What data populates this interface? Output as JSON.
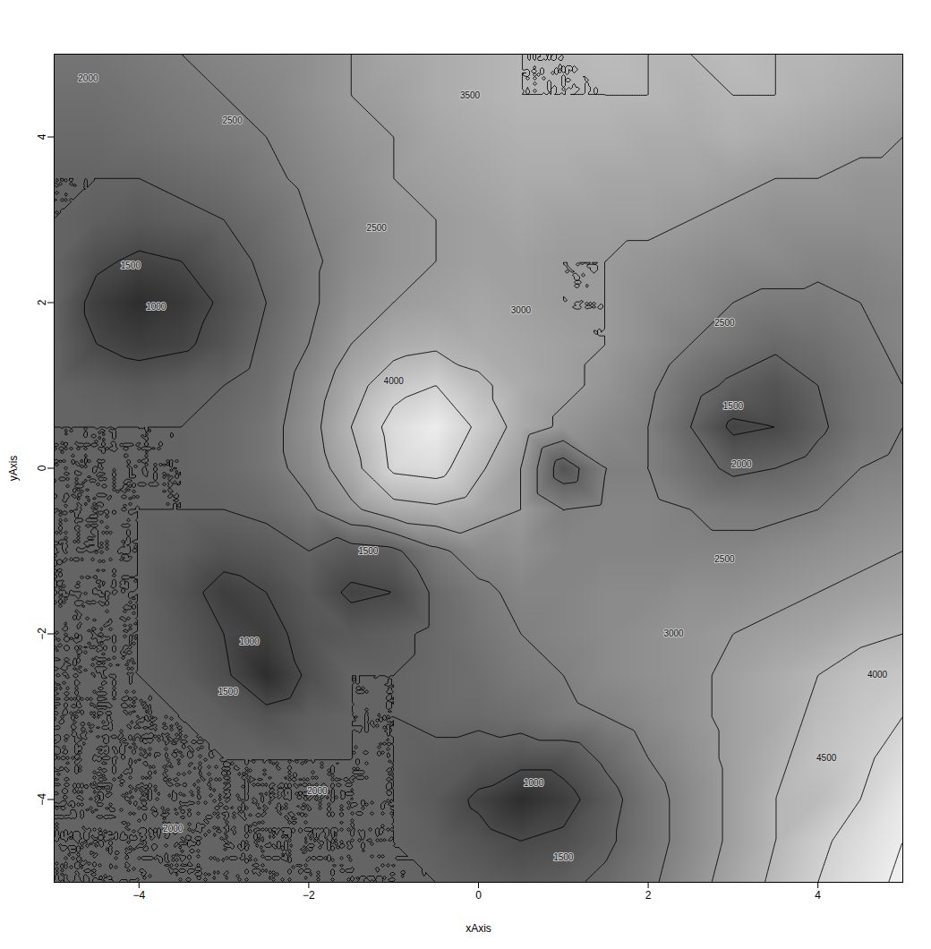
{
  "chart_data": {
    "type": "contour",
    "xlabel": "xAxis",
    "ylabel": "yAxis",
    "xlim": [
      -5,
      5
    ],
    "ylim": [
      -5,
      5
    ],
    "xticks": [
      -4,
      -2,
      0,
      2,
      4
    ],
    "yticks": [
      -4,
      -2,
      0,
      2,
      4
    ],
    "x": [
      -5,
      -4.5,
      -4,
      -3.5,
      -3,
      -2.5,
      -2,
      -1.5,
      -1,
      -0.5,
      0,
      0.5,
      1,
      1.5,
      2,
      2.5,
      3,
      3.5,
      4,
      4.5,
      5
    ],
    "y": [
      5,
      4.5,
      4,
      3.5,
      3,
      2.5,
      2,
      1.5,
      1,
      0.5,
      0,
      -0.5,
      -1,
      -1.5,
      -2,
      -2.5,
      -3,
      -3.5,
      -4,
      -4.5,
      -5
    ],
    "values": [
      [
        2300,
        2300,
        2400,
        2500,
        2600,
        2700,
        2800,
        3000,
        3200,
        3300,
        3400,
        3500,
        3500,
        3600,
        3500,
        3500,
        3600,
        3500,
        3500,
        3400,
        3300
      ],
      [
        2200,
        2200,
        2300,
        2400,
        2500,
        2600,
        2800,
        3000,
        3100,
        3300,
        3400,
        3500,
        3500,
        3500,
        3500,
        3400,
        3500,
        3500,
        3400,
        3300,
        3200
      ],
      [
        2100,
        2100,
        2200,
        2300,
        2400,
        2500,
        2700,
        2900,
        3000,
        3200,
        3300,
        3400,
        3400,
        3400,
        3300,
        3300,
        3400,
        3300,
        3200,
        3100,
        3000
      ],
      [
        2000,
        2000,
        2000,
        2100,
        2200,
        2400,
        2600,
        2800,
        3000,
        3100,
        3200,
        3300,
        3300,
        3200,
        3200,
        3200,
        3100,
        3000,
        3000,
        2900,
        2900
      ],
      [
        2000,
        1900,
        1800,
        1900,
        2000,
        2200,
        2500,
        2700,
        2900,
        3000,
        3100,
        3200,
        3100,
        3100,
        3100,
        3000,
        2900,
        2800,
        2800,
        2800,
        2800
      ],
      [
        2000,
        1600,
        1400,
        1500,
        1800,
        2100,
        2400,
        2700,
        2900,
        3000,
        3100,
        3100,
        3000,
        3000,
        2900,
        2800,
        2700,
        2700,
        2600,
        2600,
        2700
      ],
      [
        2000,
        1300,
        1000,
        1200,
        1600,
        2000,
        2400,
        2800,
        3000,
        3100,
        3200,
        3100,
        3000,
        3000,
        2800,
        2700,
        2500,
        2400,
        2400,
        2500,
        2600
      ],
      [
        2000,
        1500,
        1300,
        1400,
        1700,
        2100,
        2500,
        3000,
        3300,
        3400,
        3300,
        3200,
        3100,
        3000,
        2800,
        2500,
        2300,
        2100,
        2200,
        2400,
        2600
      ],
      [
        2000,
        1900,
        1800,
        1900,
        2000,
        2200,
        2700,
        3300,
        3800,
        4000,
        3600,
        3300,
        3100,
        2900,
        2600,
        2200,
        1900,
        1700,
        2000,
        2300,
        2500
      ],
      [
        2000,
        2000,
        2000,
        2000,
        2100,
        2300,
        2800,
        3500,
        4200,
        4500,
        3900,
        3300,
        2900,
        2700,
        2500,
        2000,
        1400,
        1500,
        1900,
        2300,
        2500
      ],
      [
        2000,
        2000,
        2000,
        2000,
        2100,
        2300,
        2700,
        3300,
        4100,
        4200,
        3600,
        3000,
        1700,
        2500,
        2500,
        2200,
        1900,
        2000,
        2200,
        2500,
        2600
      ],
      [
        2000,
        2000,
        2000,
        2000,
        2000,
        2100,
        2400,
        2900,
        3300,
        3400,
        3200,
        3000,
        2500,
        2600,
        2600,
        2500,
        2400,
        2400,
        2500,
        2700,
        2800
      ],
      [
        2000,
        2000,
        2000,
        1900,
        1700,
        1800,
        2000,
        1800,
        1900,
        2400,
        2700,
        2800,
        2600,
        2600,
        2600,
        2600,
        2600,
        2700,
        2800,
        2900,
        3000
      ],
      [
        2000,
        2000,
        2000,
        1700,
        1300,
        1500,
        1800,
        1400,
        1500,
        2100,
        2400,
        2600,
        2600,
        2700,
        2700,
        2800,
        2800,
        2900,
        3000,
        3100,
        3200
      ],
      [
        2000,
        2000,
        2000,
        1800,
        1500,
        1300,
        1700,
        1800,
        1900,
        2100,
        2300,
        2500,
        2600,
        2700,
        2800,
        2900,
        3000,
        3100,
        3200,
        3400,
        3500
      ],
      [
        2000,
        2000,
        2000,
        1900,
        1600,
        1000,
        1600,
        2000,
        2000,
        2100,
        2200,
        2400,
        2500,
        2700,
        2800,
        2900,
        3100,
        3300,
        3500,
        3700,
        3800
      ],
      [
        2000,
        2000,
        2000,
        2000,
        1900,
        1700,
        1900,
        2000,
        2000,
        2100,
        2100,
        2200,
        2400,
        2500,
        2700,
        2900,
        3100,
        3300,
        3600,
        3800,
        4000
      ],
      [
        2000,
        2000,
        2000,
        2000,
        2000,
        2000,
        2000,
        2000,
        2000,
        1900,
        1800,
        1700,
        1700,
        2100,
        2500,
        2800,
        3100,
        3400,
        3700,
        3900,
        4200
      ],
      [
        2000,
        2000,
        2000,
        2000,
        2000,
        2000,
        2000,
        2000,
        2000,
        1800,
        1400,
        1000,
        1300,
        1800,
        2300,
        2700,
        3100,
        3500,
        3600,
        4000,
        4400
      ],
      [
        2000,
        2000,
        2000,
        2000,
        2000,
        2000,
        2000,
        2000,
        2000,
        1900,
        1700,
        1500,
        1600,
        1900,
        2300,
        2700,
        3100,
        3500,
        3900,
        4200,
        4500
      ],
      [
        2000,
        2000,
        2000,
        2000,
        2000,
        2000,
        2000,
        2000,
        2000,
        2000,
        1900,
        1800,
        1900,
        2100,
        2400,
        2800,
        3200,
        3600,
        4000,
        4300,
        4600
      ]
    ],
    "contour_levels": [
      1000,
      1500,
      2000,
      2500,
      3000,
      3500,
      4000,
      4500
    ],
    "annotations": [
      {
        "x": -3.8,
        "y": 1.95,
        "text": "1000"
      },
      {
        "x": -4.1,
        "y": 2.45,
        "text": "1500"
      },
      {
        "x": -2.7,
        "y": -2.1,
        "text": "1000"
      },
      {
        "x": -2.95,
        "y": -2.7,
        "text": "1500"
      },
      {
        "x": 0.65,
        "y": -3.8,
        "text": "1000"
      },
      {
        "x": 1.0,
        "y": -4.7,
        "text": "1500"
      },
      {
        "x": 3.0,
        "y": 0.75,
        "text": "1500"
      },
      {
        "x": 3.1,
        "y": 0.05,
        "text": "2000"
      },
      {
        "x": -1.3,
        "y": -1.0,
        "text": "1500"
      },
      {
        "x": -4.6,
        "y": 4.7,
        "text": "2000"
      },
      {
        "x": -2.9,
        "y": 4.2,
        "text": "2500"
      },
      {
        "x": -1.9,
        "y": -3.9,
        "text": "2000"
      },
      {
        "x": -3.6,
        "y": -4.35,
        "text": "2000"
      },
      {
        "x": -1.2,
        "y": 2.9,
        "text": "2500"
      },
      {
        "x": -1.0,
        "y": 1.05,
        "text": "4000"
      },
      {
        "x": 0.5,
        "y": 1.9,
        "text": "3000"
      },
      {
        "x": -0.1,
        "y": 4.5,
        "text": "3500"
      },
      {
        "x": 2.9,
        "y": 1.75,
        "text": "2500"
      },
      {
        "x": 2.9,
        "y": -1.1,
        "text": "2500"
      },
      {
        "x": 2.3,
        "y": -2.0,
        "text": "3000"
      },
      {
        "x": 4.7,
        "y": -2.5,
        "text": "4000"
      },
      {
        "x": 4.1,
        "y": -3.5,
        "text": "4500"
      }
    ]
  }
}
